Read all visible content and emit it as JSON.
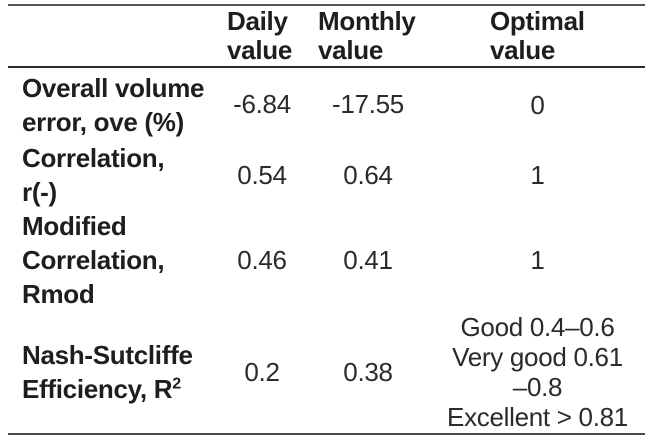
{
  "table": {
    "columns": [
      {
        "label_lines": []
      },
      {
        "label_lines": [
          "Daily",
          "value"
        ]
      },
      {
        "label_lines": [
          "Monthly",
          "value"
        ]
      },
      {
        "label_lines": [
          "Optimal",
          "value"
        ]
      }
    ],
    "rows": [
      {
        "label_lines": [
          "Overall volume",
          "error, ove (%)"
        ],
        "daily": "-6.84",
        "monthly": "-17.55",
        "optimal_lines": [
          "0"
        ]
      },
      {
        "label_lines": [
          "Correlation,",
          "r(-)"
        ],
        "daily": "0.54",
        "monthly": "0.64",
        "optimal_lines": [
          "1"
        ]
      },
      {
        "label_lines": [
          "Modified",
          "Correlation,",
          "Rmod"
        ],
        "daily": "0.46",
        "monthly": "0.41",
        "optimal_lines": [
          "1"
        ]
      },
      {
        "label_line1": "Nash-Sutcliffe",
        "label_line2": "Efficiency, R",
        "label_sup": "2",
        "daily": "0.2",
        "monthly": "0.38",
        "optimal_lines": [
          "Good 0.4–0.6",
          "Very good 0.61",
          "–0.8",
          "Excellent > 0.81"
        ]
      }
    ]
  },
  "chart_data": {
    "type": "table",
    "columns": [
      "",
      "Daily value",
      "Monthly value",
      "Optimal value"
    ],
    "rows": [
      [
        "Overall volume error, ove (%)",
        "-6.84",
        "-17.55",
        "0"
      ],
      [
        "Correlation, r(-)",
        "0.54",
        "0.64",
        "1"
      ],
      [
        "Modified Correlation, Rmod",
        "0.46",
        "0.41",
        "1"
      ],
      [
        "Nash-Sutcliffe Efficiency, R2",
        "0.2",
        "0.38",
        "Good 0.4–0.6; Very good 0.61–0.8; Excellent > 0.81"
      ]
    ]
  },
  "colors": {
    "text": "#1e1d1f",
    "value_text": "#2b2a2c",
    "rule": "#2d2d2d",
    "background": "#ffffff"
  }
}
